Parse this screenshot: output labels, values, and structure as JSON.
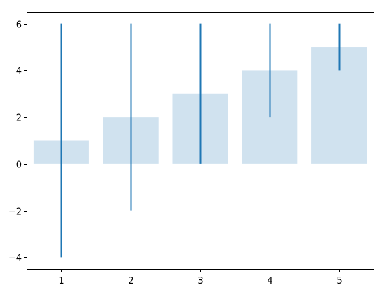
{
  "chart_data": {
    "type": "bar",
    "title": "",
    "xlabel": "",
    "ylabel": "",
    "categories": [
      "1",
      "2",
      "3",
      "4",
      "5"
    ],
    "x": [
      1,
      2,
      3,
      4,
      5
    ],
    "values": [
      1,
      2,
      3,
      4,
      5
    ],
    "vlines": [
      {
        "x": 1,
        "ymin": -4,
        "ymax": 6
      },
      {
        "x": 2,
        "ymin": -2,
        "ymax": 6
      },
      {
        "x": 3,
        "ymin": 0,
        "ymax": 6
      },
      {
        "x": 4,
        "ymin": 2,
        "ymax": 6
      },
      {
        "x": 5,
        "ymin": 4,
        "ymax": 6
      }
    ],
    "xlim": [
      0.5,
      5.5
    ],
    "ylim": [
      -4.5,
      6.5
    ],
    "xticks": [
      1,
      2,
      3,
      4,
      5
    ],
    "yticks": [
      -4,
      -2,
      0,
      2,
      4,
      6
    ],
    "ytick_labels": [
      "−4",
      "−2",
      "0",
      "2",
      "4",
      "6"
    ],
    "bar_color": "#d0e2ef",
    "line_color": "#1f77b4",
    "grid": false,
    "legend": "none"
  }
}
